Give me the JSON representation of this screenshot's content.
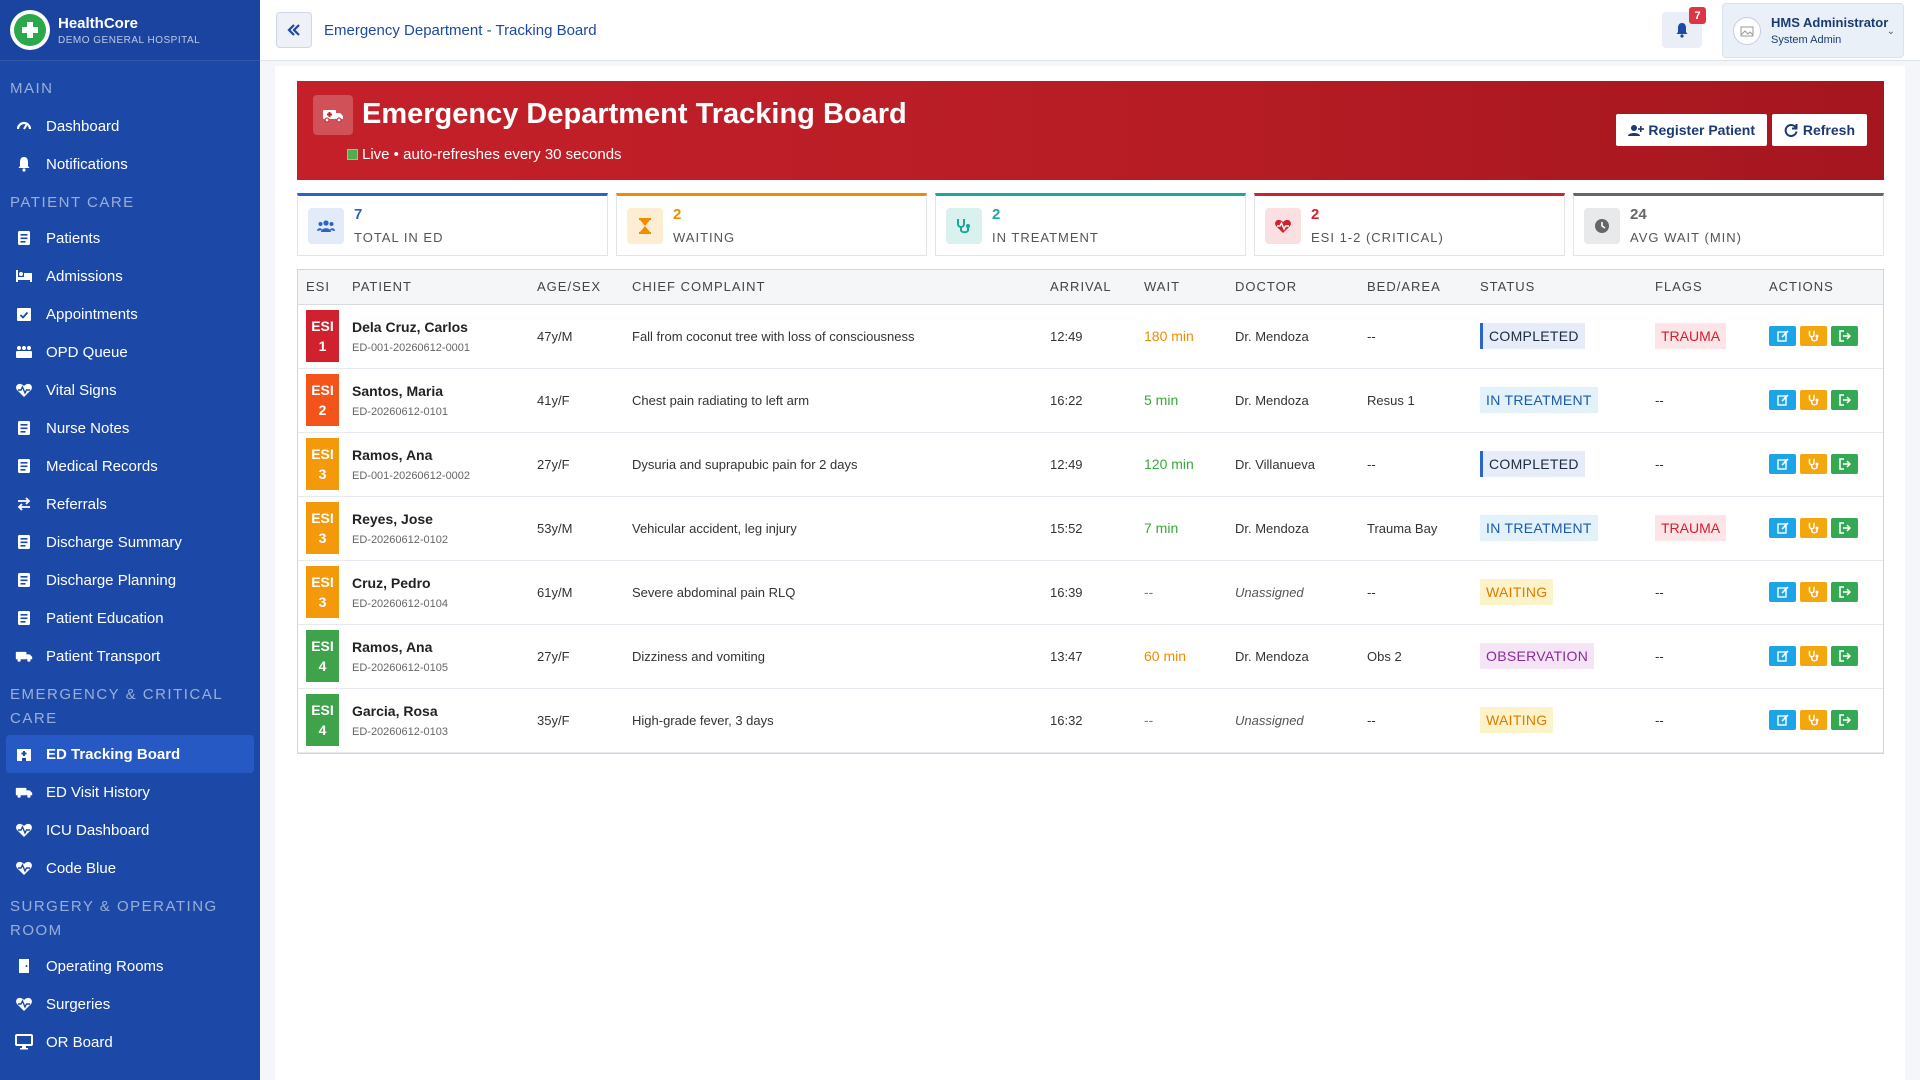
{
  "brand": {
    "name": "HealthCore",
    "subtitle": "DEMO GENERAL HOSPITAL"
  },
  "sidebar": {
    "sections": [
      {
        "title": "MAIN",
        "items": [
          {
            "label": "Dashboard",
            "icon": "dashboard-icon"
          },
          {
            "label": "Notifications",
            "icon": "bell-icon"
          }
        ]
      },
      {
        "title": "PATIENT CARE",
        "items": [
          {
            "label": "Patients",
            "icon": "patient-icon"
          },
          {
            "label": "Admissions",
            "icon": "bed-icon"
          },
          {
            "label": "Appointments",
            "icon": "calendar-check-icon"
          },
          {
            "label": "OPD Queue",
            "icon": "queue-icon"
          },
          {
            "label": "Vital Signs",
            "icon": "heartbeat-icon"
          },
          {
            "label": "Nurse Notes",
            "icon": "notes-icon"
          },
          {
            "label": "Medical Records",
            "icon": "records-icon"
          },
          {
            "label": "Referrals",
            "icon": "exchange-icon"
          },
          {
            "label": "Discharge Summary",
            "icon": "file-medical-icon"
          },
          {
            "label": "Discharge Planning",
            "icon": "planning-icon"
          },
          {
            "label": "Patient Education",
            "icon": "education-icon"
          },
          {
            "label": "Patient Transport",
            "icon": "ambulance-icon"
          }
        ]
      },
      {
        "title": "EMERGENCY & CRITICAL CARE",
        "items": [
          {
            "label": "ED Tracking Board",
            "icon": "hospital-icon",
            "active": true
          },
          {
            "label": "ED Visit History",
            "icon": "ambulance-icon"
          },
          {
            "label": "ICU Dashboard",
            "icon": "heartbeat-icon"
          },
          {
            "label": "Code Blue",
            "icon": "heartbeat-icon"
          }
        ]
      },
      {
        "title": "SURGERY & OPERATING ROOM",
        "items": [
          {
            "label": "Operating Rooms",
            "icon": "door-icon"
          },
          {
            "label": "Surgeries",
            "icon": "heartbeat-icon"
          },
          {
            "label": "OR Board",
            "icon": "monitor-icon"
          }
        ]
      }
    ]
  },
  "topbar": {
    "title": "Emergency Department - Tracking Board",
    "notification_count": "7",
    "user_name": "HMS Administrator",
    "user_role": "System Admin"
  },
  "hero": {
    "title": "Emergency Department Tracking Board",
    "subtitle": "Live • auto-refreshes every 30 seconds",
    "register_label": "Register Patient",
    "refresh_label": "Refresh"
  },
  "stats": [
    {
      "value": "7",
      "label": "TOTAL IN ED",
      "color": "#2b63c9",
      "icon_bg": "#e3ebf8",
      "icon": "users-icon"
    },
    {
      "value": "2",
      "label": "WAITING",
      "color": "#f08c00",
      "icon_bg": "#fdeed3",
      "icon": "hourglass-icon"
    },
    {
      "value": "2",
      "label": "IN TREATMENT",
      "color": "#1aa89a",
      "icon_bg": "#d9f2ef",
      "icon": "stethoscope-icon"
    },
    {
      "value": "2",
      "label": "ESI 1-2 (CRITICAL)",
      "color": "#d0212e",
      "icon_bg": "#fbe0e2",
      "icon": "heart-pulse-icon"
    },
    {
      "value": "24",
      "label": "AVG WAIT (MIN)",
      "color": "#666666",
      "icon_bg": "#e8e9eb",
      "icon": "clock-icon"
    }
  ],
  "table": {
    "headers": [
      "ESI",
      "PATIENT",
      "AGE/SEX",
      "CHIEF COMPLAINT",
      "ARRIVAL",
      "WAIT",
      "DOCTOR",
      "BED/AREA",
      "STATUS",
      "FLAGS",
      "ACTIONS"
    ],
    "rows": [
      {
        "esi": "1",
        "esi_color": "#d0212e",
        "name": "Dela Cruz, Carlos",
        "id": "ED-001-20260612-0001",
        "age": "47y/M",
        "complaint": "Fall from coconut tree with loss of consciousness",
        "arrival": "12:49",
        "wait": "180 min",
        "wait_class": "wait-orange",
        "doctor": "Dr. Mendoza",
        "bed": "--",
        "status": "COMPLETED",
        "status_class": "st-completed",
        "flag": "TRAUMA"
      },
      {
        "esi": "2",
        "esi_color": "#f2541b",
        "name": "Santos, Maria",
        "id": "ED-20260612-0101",
        "age": "41y/F",
        "complaint": "Chest pain radiating to left arm",
        "arrival": "16:22",
        "wait": "5 min",
        "wait_class": "wait-green",
        "doctor": "Dr. Mendoza",
        "bed": "Resus 1",
        "status": "IN TREATMENT",
        "status_class": "st-treatment",
        "flag": "--"
      },
      {
        "esi": "3",
        "esi_color": "#f49a0a",
        "name": "Ramos, Ana",
        "id": "ED-001-20260612-0002",
        "age": "27y/F",
        "complaint": "Dysuria and suprapubic pain for 2 days",
        "arrival": "12:49",
        "wait": "120 min",
        "wait_class": "wait-green",
        "doctor": "Dr. Villanueva",
        "bed": "--",
        "status": "COMPLETED",
        "status_class": "st-completed",
        "flag": "--"
      },
      {
        "esi": "3",
        "esi_color": "#f49a0a",
        "name": "Reyes, Jose",
        "id": "ED-20260612-0102",
        "age": "53y/M",
        "complaint": "Vehicular accident, leg injury",
        "arrival": "15:52",
        "wait": "7 min",
        "wait_class": "wait-green",
        "doctor": "Dr. Mendoza",
        "bed": "Trauma Bay",
        "status": "IN TREATMENT",
        "status_class": "st-treatment",
        "flag": "TRAUMA"
      },
      {
        "esi": "3",
        "esi_color": "#f49a0a",
        "name": "Cruz, Pedro",
        "id": "ED-20260612-0104",
        "age": "61y/M",
        "complaint": "Severe abdominal pain RLQ",
        "arrival": "16:39",
        "wait": "--",
        "wait_class": "wait-green",
        "doctor": "Unassigned",
        "bed": "--",
        "status": "WAITING",
        "status_class": "st-waiting",
        "flag": "--"
      },
      {
        "esi": "4",
        "esi_color": "#3ea34a",
        "name": "Ramos, Ana",
        "id": "ED-20260612-0105",
        "age": "27y/F",
        "complaint": "Dizziness and vomiting",
        "arrival": "13:47",
        "wait": "60 min",
        "wait_class": "wait-orange",
        "doctor": "Dr. Mendoza",
        "bed": "Obs 2",
        "status": "OBSERVATION",
        "status_class": "st-observation",
        "flag": "--"
      },
      {
        "esi": "4",
        "esi_color": "#3ea34a",
        "name": "Garcia, Rosa",
        "id": "ED-20260612-0103",
        "age": "35y/F",
        "complaint": "High-grade fever, 3 days",
        "arrival": "16:32",
        "wait": "--",
        "wait_class": "wait-green",
        "doctor": "Unassigned",
        "bed": "--",
        "status": "WAITING",
        "status_class": "st-waiting",
        "flag": "--"
      }
    ]
  }
}
